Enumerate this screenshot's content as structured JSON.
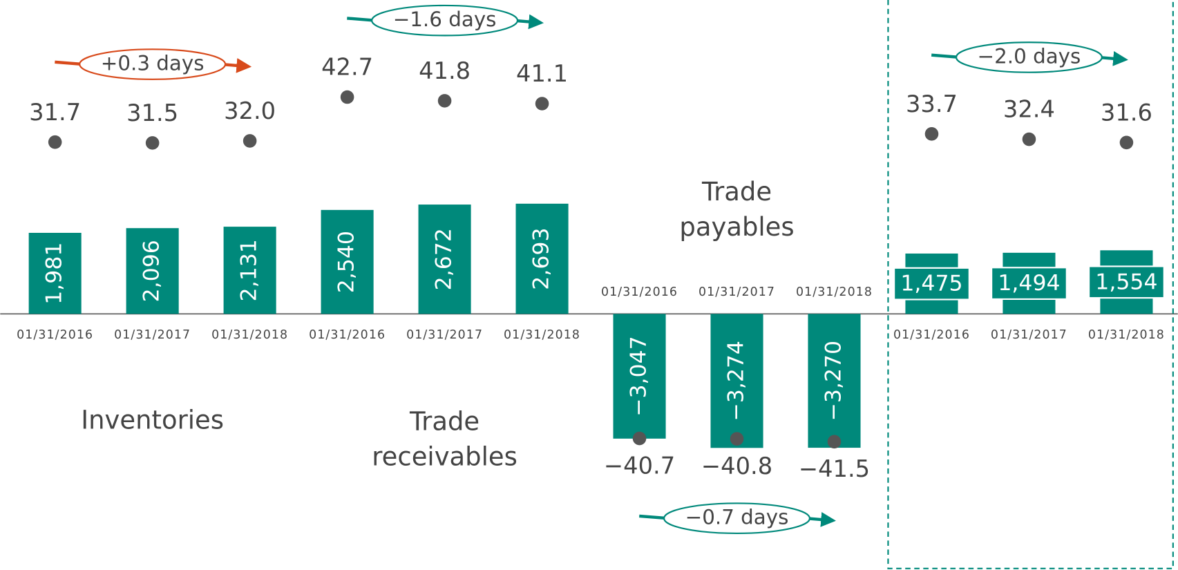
{
  "chart_data": {
    "type": "bar",
    "bar_color": "#00897b",
    "dot_color": "#555555",
    "groups": [
      {
        "name_lines": [
          "Inventories"
        ],
        "categories": [
          "01/31/2016",
          "01/31/2017",
          "01/31/2018"
        ],
        "values": [
          1981,
          2096,
          2131
        ],
        "value_labels": [
          "1,981",
          "2,096",
          "2,131"
        ],
        "days": [
          31.7,
          31.5,
          32.0
        ],
        "days_labels": [
          "31.7",
          "31.5",
          "32.0"
        ],
        "change": "+0.3 days",
        "change_color": "#d84a1b",
        "horizontal_labels": false
      },
      {
        "name_lines": [
          "Trade",
          "receivables"
        ],
        "categories": [
          "01/31/2016",
          "01/31/2017",
          "01/31/2018"
        ],
        "values": [
          2540,
          2672,
          2693
        ],
        "value_labels": [
          "2,540",
          "2,672",
          "2,693"
        ],
        "days": [
          42.7,
          41.8,
          41.1
        ],
        "days_labels": [
          "42.7",
          "41.8",
          "41.1"
        ],
        "change": "−1.6 days",
        "change_color": "#00897b",
        "horizontal_labels": false
      },
      {
        "name_lines": [
          "Trade",
          "payables"
        ],
        "categories": [
          "01/31/2016",
          "01/31/2017",
          "01/31/2018"
        ],
        "values": [
          -3047,
          -3274,
          -3270
        ],
        "value_labels": [
          "−3,047",
          "−3,274",
          "−3,270"
        ],
        "days": [
          -40.7,
          -40.8,
          -41.5
        ],
        "days_labels": [
          "−40.7",
          "−40.8",
          "−41.5"
        ],
        "change": "−0.7 days",
        "change_color": "#00897b",
        "horizontal_labels": false
      },
      {
        "categories": [
          "01/31/2016",
          "01/31/2017",
          "01/31/2018"
        ],
        "values": [
          1475,
          1494,
          1554
        ],
        "value_labels": [
          "1,475",
          "1,494",
          "1,554"
        ],
        "days": [
          33.7,
          32.4,
          31.6
        ],
        "days_labels": [
          "33.7",
          "32.4",
          "31.6"
        ],
        "change": "−2.0 days",
        "change_color": "#00897b",
        "horizontal_labels": true,
        "dashed_box": true
      }
    ]
  }
}
